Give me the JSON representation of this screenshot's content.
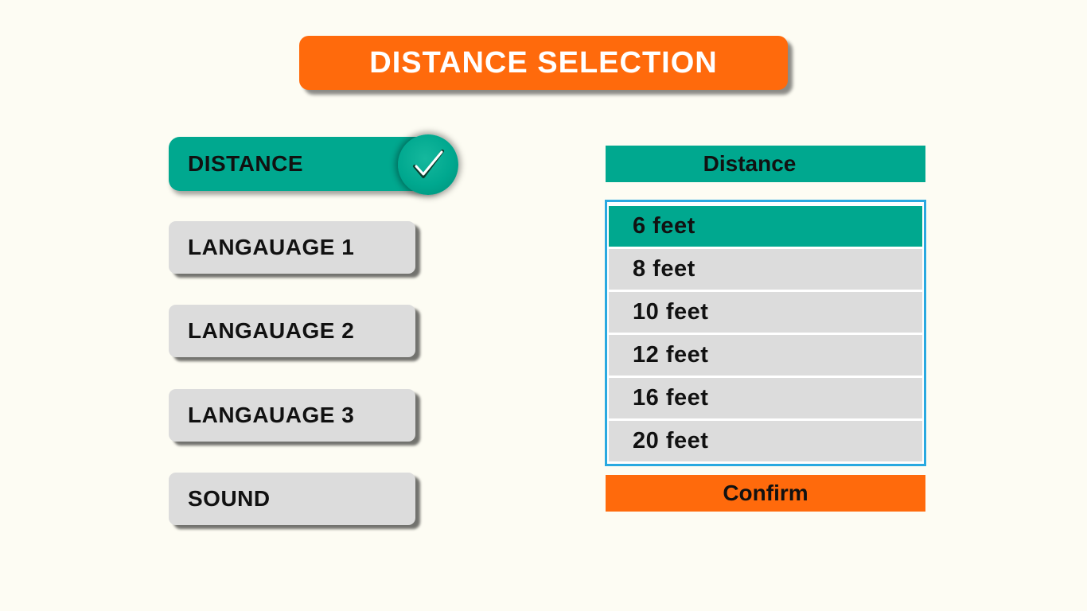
{
  "title": "DISTANCE SELECTION",
  "menu": {
    "items": [
      {
        "label": "DISTANCE",
        "active": true
      },
      {
        "label": "LANGAUAGE 1",
        "active": false
      },
      {
        "label": "LANGAUAGE 2",
        "active": false
      },
      {
        "label": "LANGAUAGE 3",
        "active": false
      },
      {
        "label": "SOUND",
        "active": false
      }
    ]
  },
  "panel": {
    "header": "Distance",
    "options": [
      "6 feet",
      "8 feet",
      "10 feet",
      "12 feet",
      "16 feet",
      "20 feet"
    ],
    "selected_index": 0,
    "confirm_label": "Confirm"
  },
  "icons": {
    "active_check": "checkmark-icon"
  },
  "colors": {
    "background": "#fdfcf3",
    "accent_orange": "#ff6a0c",
    "accent_teal": "#00a88f",
    "item_gray": "#dcdcdc",
    "list_border": "#29a9e0"
  }
}
